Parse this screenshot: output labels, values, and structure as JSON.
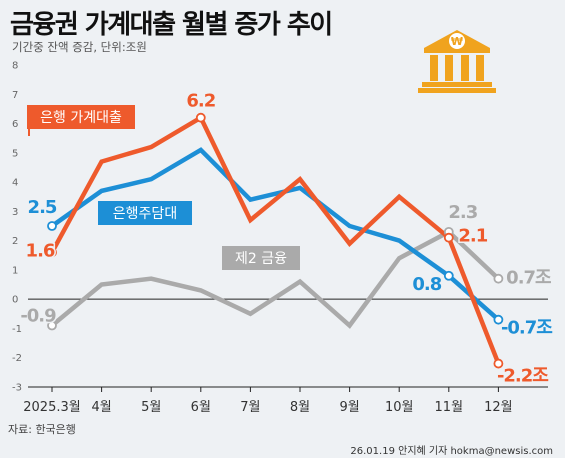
{
  "header": {
    "title": "금융권 가계대출 월별 증가 추이",
    "subtitle": "기간중 잔액 증감, 단위:조원"
  },
  "footer": {
    "source": "자료: 한국은행",
    "credit": "26.01.19 안지혜 기자 hokma@newsis.com"
  },
  "icon": {
    "name": "bank-won-icon",
    "color": "#f0a31e"
  },
  "chart_data": {
    "type": "line",
    "title": "금융권 가계대출 월별 증가 추이",
    "subtitle": "기간중 잔액 증감, 단위:조원",
    "categories": [
      "2025.3월",
      "4월",
      "5월",
      "6월",
      "7월",
      "8월",
      "9월",
      "10월",
      "11월",
      "12월"
    ],
    "yticks": [
      "-3",
      "-2",
      "-1",
      "0",
      "1",
      "2",
      "3",
      "4",
      "5",
      "6",
      "7",
      "8"
    ],
    "ylim": [
      -3,
      8
    ],
    "grid": false,
    "series": [
      {
        "name": "은행 가계대출",
        "color": "#ee5a2c",
        "values": [
          1.6,
          4.7,
          5.2,
          6.2,
          2.7,
          4.1,
          1.9,
          3.5,
          2.1,
          -2.2
        ],
        "labels": [
          {
            "index": 0,
            "text": "1.6"
          },
          {
            "index": 3,
            "text": "6.2"
          },
          {
            "index": 8,
            "text": "2.1"
          },
          {
            "index": 9,
            "text": "-2.2조"
          }
        ]
      },
      {
        "name": "은행주담대",
        "color": "#1d8fd6",
        "values": [
          2.5,
          3.7,
          4.1,
          5.1,
          3.4,
          3.8,
          2.5,
          2.0,
          0.8,
          -0.7
        ],
        "labels": [
          {
            "index": 0,
            "text": "2.5"
          },
          {
            "index": 8,
            "text": "0.8"
          },
          {
            "index": 9,
            "text": "-0.7조"
          }
        ]
      },
      {
        "name": "제2 금융",
        "color": "#aaaaaa",
        "values": [
          -0.9,
          0.5,
          0.7,
          0.3,
          -0.5,
          0.6,
          -0.9,
          1.4,
          2.3,
          0.7
        ],
        "labels": [
          {
            "index": 0,
            "text": "-0.9"
          },
          {
            "index": 8,
            "text": "2.3"
          },
          {
            "index": 9,
            "text": "0.7조"
          }
        ]
      }
    ]
  }
}
